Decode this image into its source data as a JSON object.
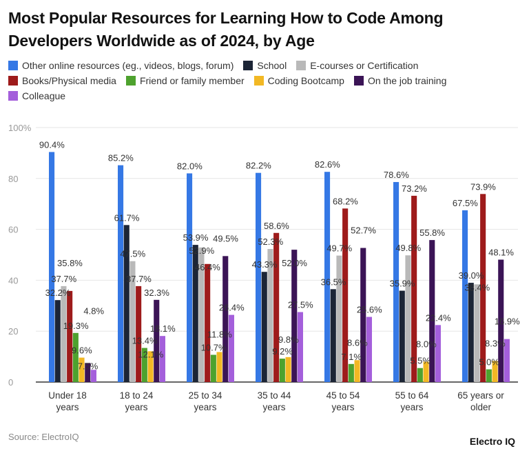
{
  "title": "Most Popular Resources for Learning How to Code Among Developers Worldwide as of 2024, by Age",
  "source": "Source: ElectroIQ",
  "logo": "Electro IQ",
  "chart_data": {
    "type": "bar",
    "title": "Most Popular Resources for Learning How to Code Among Developers Worldwide as of 2024, by Age",
    "categories": [
      "Under 18 years",
      "18 to 24 years",
      "25 to 34 years",
      "35 to 44 years",
      "45 to 54 years",
      "55 to 64 years",
      "65 years or older"
    ],
    "category_lines": [
      [
        "Under 18",
        "years"
      ],
      [
        "18 to 24",
        "years"
      ],
      [
        "25 to 34",
        "years"
      ],
      [
        "35 to 44",
        "years"
      ],
      [
        "45 to 54",
        "years"
      ],
      [
        "55 to 64",
        "years"
      ],
      [
        "65 years or",
        "older"
      ]
    ],
    "ylim": [
      0,
      100
    ],
    "yticks": [
      "0",
      "20",
      "40",
      "60",
      "80",
      "100%"
    ],
    "grid": true,
    "legend_position": "top",
    "series": [
      {
        "name": "Other online resources (eg., videos, blogs, forum)",
        "color": "#3578e5",
        "values": [
          90.4,
          85.2,
          82.0,
          82.2,
          82.6,
          78.6,
          67.5
        ]
      },
      {
        "name": "School",
        "color": "#1c2536",
        "values": [
          32.2,
          61.7,
          53.9,
          43.3,
          36.5,
          35.9,
          39.0
        ]
      },
      {
        "name": "E-courses or Certification",
        "color": "#b9b9b9",
        "values": [
          37.7,
          47.5,
          52.9,
          52.3,
          49.7,
          49.8,
          38.4
        ]
      },
      {
        "name": "Books/Physical media",
        "color": "#9e1b1b",
        "values": [
          35.8,
          37.7,
          46.4,
          58.6,
          68.2,
          73.2,
          73.9
        ]
      },
      {
        "name": "Friend or family member",
        "color": "#4ea22e",
        "values": [
          19.3,
          13.4,
          10.7,
          9.2,
          7.1,
          5.5,
          5.0
        ]
      },
      {
        "name": "Coding Bootcamp",
        "color": "#f2b824",
        "values": [
          9.6,
          12.1,
          11.8,
          9.8,
          8.6,
          8.0,
          8.3
        ]
      },
      {
        "name": "On the job training",
        "color": "#3b1456",
        "values": [
          7.5,
          32.3,
          49.5,
          52.0,
          52.7,
          55.8,
          48.1
        ]
      },
      {
        "name": "Colleague",
        "color": "#a45fdb",
        "values": [
          4.8,
          18.1,
          26.4,
          27.5,
          25.6,
          22.4,
          16.9
        ]
      }
    ]
  }
}
